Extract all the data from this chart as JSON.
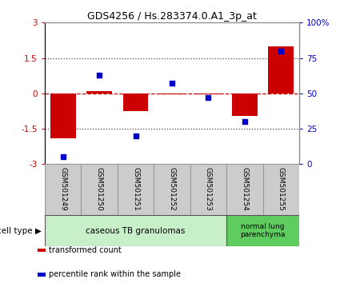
{
  "title": "GDS4256 / Hs.283374.0.A1_3p_at",
  "samples": [
    "GSM501249",
    "GSM501250",
    "GSM501251",
    "GSM501252",
    "GSM501253",
    "GSM501254",
    "GSM501255"
  ],
  "transformed_count": [
    -1.9,
    0.1,
    -0.75,
    -0.05,
    -0.05,
    -0.95,
    2.0
  ],
  "percentile_rank": [
    5,
    63,
    20,
    57,
    47,
    30,
    80
  ],
  "ylim_left": [
    -3,
    3
  ],
  "ylim_right": [
    0,
    100
  ],
  "yticks_left": [
    -3,
    -1.5,
    0,
    1.5,
    3
  ],
  "yticks_right": [
    0,
    25,
    50,
    75,
    100
  ],
  "ytick_labels_left": [
    "-3",
    "-1.5",
    "0",
    "1.5",
    "3"
  ],
  "ytick_labels_right": [
    "0",
    "25",
    "50",
    "75",
    "100%"
  ],
  "bar_color": "#cc0000",
  "dot_color": "#0000cc",
  "zero_line_color": "#cc0000",
  "dotted_line_color": "#444444",
  "group1_label": "caseous TB granulomas",
  "group2_label": "normal lung\nparenchyma",
  "group1_color": "#c8f0c8",
  "group2_color": "#5fcc5f",
  "group1_count": 5,
  "group2_count": 2,
  "cell_type_label": "cell type",
  "legend1_label": "transformed count",
  "legend2_label": "percentile rank within the sample",
  "background_color": "#ffffff",
  "plot_bg_color": "#ffffff",
  "tick_label_color_left": "#cc0000",
  "tick_label_color_right": "#0000cc",
  "label_box_color": "#cccccc",
  "label_box_edge_color": "#999999"
}
